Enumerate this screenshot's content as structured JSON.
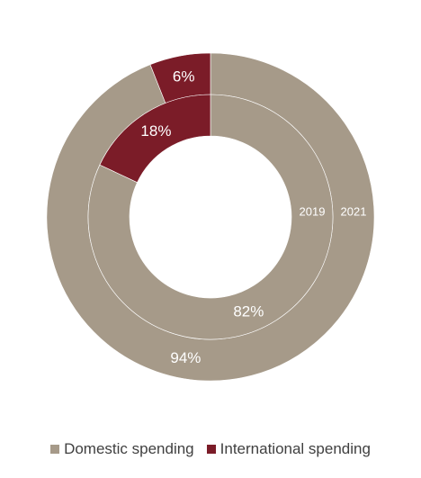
{
  "chart_data": {
    "type": "pie",
    "variant": "nested-donut",
    "categories": [
      "Domestic spending",
      "International spending"
    ],
    "colors": [
      "#a69a89",
      "#7b1c28"
    ],
    "rings": [
      {
        "name": "2021",
        "position": "outer",
        "values": [
          94,
          6
        ],
        "labels": [
          "94%",
          "6%"
        ]
      },
      {
        "name": "2019",
        "position": "inner",
        "values": [
          82,
          18
        ],
        "labels": [
          "82%",
          "18%"
        ]
      }
    ],
    "legend": {
      "position": "bottom",
      "items": [
        {
          "label": "Domestic spending",
          "color": "#a69a89"
        },
        {
          "label": "International spending",
          "color": "#7b1c28"
        }
      ]
    }
  }
}
